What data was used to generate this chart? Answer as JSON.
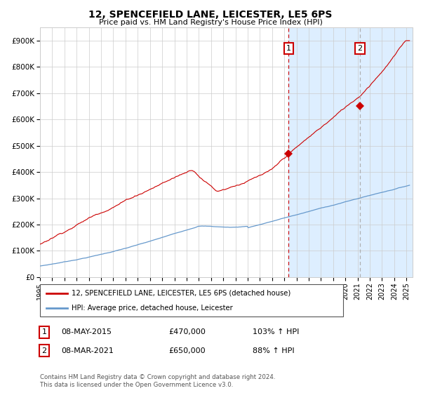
{
  "title": "12, SPENCEFIELD LANE, LEICESTER, LE5 6PS",
  "subtitle": "Price paid vs. HM Land Registry's House Price Index (HPI)",
  "xlim_start": 1995.0,
  "xlim_end": 2025.5,
  "ylim_min": 0,
  "ylim_max": 950000,
  "yticks": [
    0,
    100000,
    200000,
    300000,
    400000,
    500000,
    600000,
    700000,
    800000,
    900000
  ],
  "ytick_labels": [
    "£0",
    "£100K",
    "£200K",
    "£300K",
    "£400K",
    "£500K",
    "£600K",
    "£700K",
    "£800K",
    "£900K"
  ],
  "xticks": [
    1995,
    1996,
    1997,
    1998,
    1999,
    2000,
    2001,
    2002,
    2003,
    2004,
    2005,
    2006,
    2007,
    2008,
    2009,
    2010,
    2011,
    2012,
    2013,
    2014,
    2015,
    2016,
    2017,
    2018,
    2019,
    2020,
    2021,
    2022,
    2023,
    2024,
    2025
  ],
  "red_line_color": "#cc0000",
  "blue_line_color": "#6699cc",
  "shade_color": "#ddeeff",
  "grid_color": "#cccccc",
  "background_color": "#ffffff",
  "sale1_x": 2015.356,
  "sale1_y": 470000,
  "sale2_x": 2021.178,
  "sale2_y": 650000,
  "vline1_color": "#cc0000",
  "vline2_color": "#aaaaaa",
  "legend_line1": "12, SPENCEFIELD LANE, LEICESTER, LE5 6PS (detached house)",
  "legend_line2": "HPI: Average price, detached house, Leicester",
  "annot1_date": "08-MAY-2015",
  "annot1_price": "£470,000",
  "annot1_hpi": "103% ↑ HPI",
  "annot2_date": "08-MAR-2021",
  "annot2_price": "£650,000",
  "annot2_hpi": "88% ↑ HPI",
  "footnote": "Contains HM Land Registry data © Crown copyright and database right 2024.\nThis data is licensed under the Open Government Licence v3.0."
}
